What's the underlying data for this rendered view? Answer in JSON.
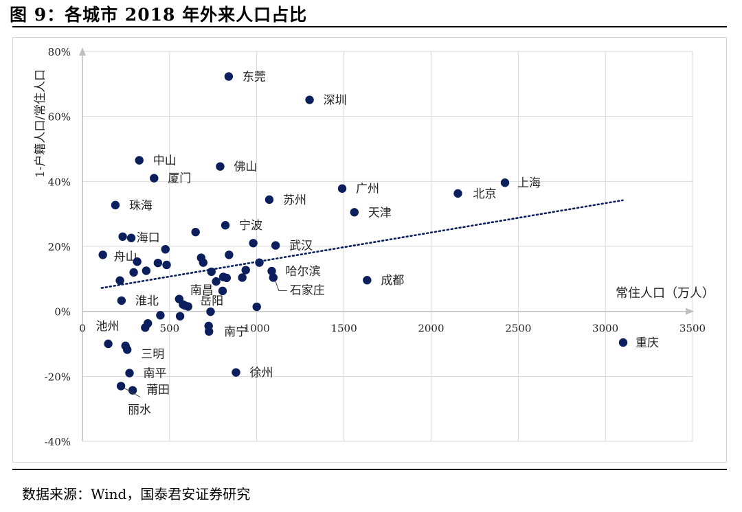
{
  "header": {
    "title": "图 9：各城市 2018 年外来人口占比"
  },
  "footer": {
    "source": "数据来源：Wind，国泰君安证券研究"
  },
  "chart_data": {
    "type": "scatter",
    "title": "图 9：各城市 2018 年外来人口占比",
    "xlabel": "常住人口（万人）",
    "ylabel": "1-户籍人口/常住人口",
    "xlim": [
      0,
      3500
    ],
    "ylim": [
      -0.4,
      0.8
    ],
    "x_ticks": [
      0,
      500,
      1000,
      1500,
      2000,
      2500,
      3000,
      3500
    ],
    "y_ticks": [
      -0.4,
      -0.2,
      0,
      0.2,
      0.4,
      0.6,
      0.8
    ],
    "y_tick_labels": [
      "-40%",
      "-20%",
      "0%",
      "20%",
      "40%",
      "60%",
      "80%"
    ],
    "grid": true,
    "point_color": "#0b1f5c",
    "trendline": {
      "style": "dotted",
      "from": [
        110,
        0.072
      ],
      "to": [
        3100,
        0.342
      ]
    },
    "points": [
      {
        "x": 839,
        "y": 0.723,
        "label": "东莞"
      },
      {
        "x": 1303,
        "y": 0.651,
        "label": "深圳"
      },
      {
        "x": 326,
        "y": 0.465,
        "label": "中山"
      },
      {
        "x": 790,
        "y": 0.446,
        "label": "佛山"
      },
      {
        "x": 411,
        "y": 0.41,
        "label": "厦门"
      },
      {
        "x": 2424,
        "y": 0.396,
        "label": "上海"
      },
      {
        "x": 1490,
        "y": 0.378,
        "label": "广州"
      },
      {
        "x": 2154,
        "y": 0.363,
        "label": "北京"
      },
      {
        "x": 1072,
        "y": 0.344,
        "label": "苏州"
      },
      {
        "x": 189,
        "y": 0.327,
        "label": "珠海"
      },
      {
        "x": 1560,
        "y": 0.305,
        "label": "天津"
      },
      {
        "x": 820,
        "y": 0.265,
        "label": "宁波"
      },
      {
        "x": 231,
        "y": 0.23,
        "label": "海口"
      },
      {
        "x": 1108,
        "y": 0.203,
        "label": "武汉"
      },
      {
        "x": 117,
        "y": 0.174,
        "label": "舟山"
      },
      {
        "x": 1086,
        "y": 0.124,
        "label": "哈尔滨"
      },
      {
        "x": 1095,
        "y": 0.104,
        "label": "石家庄"
      },
      {
        "x": 1633,
        "y": 0.096,
        "label": "成都"
      },
      {
        "x": 224,
        "y": 0.033,
        "label": "淮北"
      },
      {
        "x": 555,
        "y": 0.038,
        "label": "南昌"
      },
      {
        "x": 588,
        "y": 0.018,
        "label": "岳阳"
      },
      {
        "x": 726,
        "y": -0.062,
        "label": "南宁"
      },
      {
        "x": 3102,
        "y": -0.096,
        "label": "重庆"
      },
      {
        "x": 148,
        "y": -0.1,
        "label": "池州"
      },
      {
        "x": 257,
        "y": -0.118,
        "label": "三明"
      },
      {
        "x": 270,
        "y": -0.19,
        "label": "南平"
      },
      {
        "x": 881,
        "y": -0.188,
        "label": "徐州"
      },
      {
        "x": 288,
        "y": -0.243,
        "label": "莆田"
      },
      {
        "x": 221,
        "y": -0.23,
        "label": "丽水"
      },
      {
        "x": 280,
        "y": 0.226
      },
      {
        "x": 314,
        "y": 0.153
      },
      {
        "x": 294,
        "y": 0.12
      },
      {
        "x": 366,
        "y": 0.125
      },
      {
        "x": 433,
        "y": 0.149
      },
      {
        "x": 476,
        "y": 0.191
      },
      {
        "x": 483,
        "y": 0.143
      },
      {
        "x": 649,
        "y": 0.244
      },
      {
        "x": 681,
        "y": 0.165
      },
      {
        "x": 693,
        "y": 0.15
      },
      {
        "x": 740,
        "y": 0.122
      },
      {
        "x": 767,
        "y": 0.092
      },
      {
        "x": 808,
        "y": 0.106
      },
      {
        "x": 827,
        "y": 0.103
      },
      {
        "x": 841,
        "y": 0.174
      },
      {
        "x": 937,
        "y": 0.127
      },
      {
        "x": 917,
        "y": 0.104
      },
      {
        "x": 980,
        "y": 0.21
      },
      {
        "x": 1015,
        "y": 0.15
      },
      {
        "x": 804,
        "y": 0.063
      },
      {
        "x": 215,
        "y": 0.095
      },
      {
        "x": 375,
        "y": -0.037
      },
      {
        "x": 360,
        "y": -0.05
      },
      {
        "x": 447,
        "y": -0.012
      },
      {
        "x": 560,
        "y": -0.015
      },
      {
        "x": 577,
        "y": 0.021
      },
      {
        "x": 606,
        "y": 0.015
      },
      {
        "x": 735,
        "y": -0.001
      },
      {
        "x": 724,
        "y": -0.045
      },
      {
        "x": 1000,
        "y": 0.014
      },
      {
        "x": 247,
        "y": -0.106
      }
    ]
  }
}
